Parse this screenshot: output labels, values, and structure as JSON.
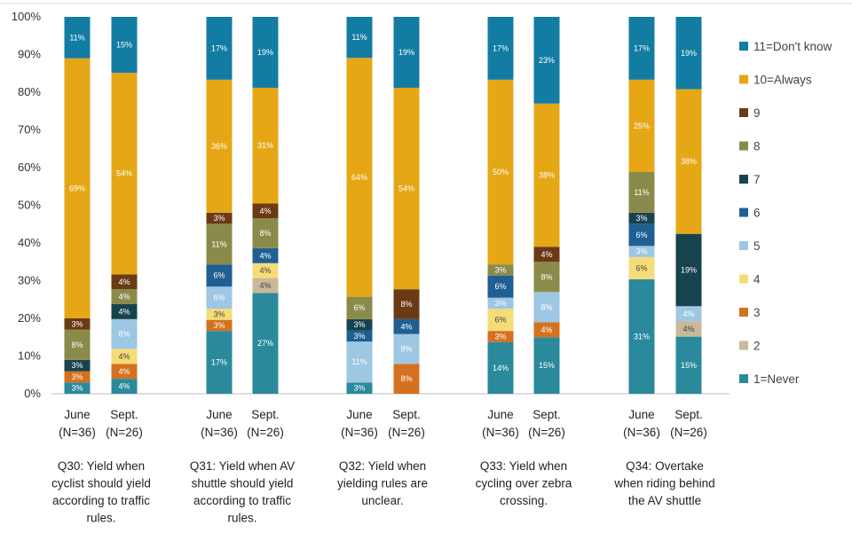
{
  "chart_data": {
    "type": "bar",
    "stacked": true,
    "percent_stacked": true,
    "y_ticks": [
      "0%",
      "10%",
      "20%",
      "30%",
      "40%",
      "50%",
      "60%",
      "70%",
      "80%",
      "90%",
      "100%"
    ],
    "ylim": [
      0,
      100
    ],
    "legend_position": "right",
    "groups": [
      {
        "label": [
          "Q30: Yield when",
          "cyclist should yield",
          "according to traffic",
          "rules."
        ]
      },
      {
        "label": [
          "Q31: Yield when AV",
          "shuttle should yield",
          "according to traffic",
          "rules."
        ]
      },
      {
        "label": [
          "Q32: Yield when",
          "yielding rules are",
          "unclear."
        ]
      },
      {
        "label": [
          "Q33: Yield when",
          "cycling over zebra",
          "crossing."
        ]
      },
      {
        "label": [
          "Q34: Overtake",
          "when riding behind",
          "the AV shuttle"
        ]
      }
    ],
    "categories": [
      {
        "label": [
          "June",
          "(N=36)"
        ],
        "group": 0
      },
      {
        "label": [
          "Sept.",
          "(N=26)"
        ],
        "group": 0
      },
      {
        "label": [
          "June",
          "(N=36)"
        ],
        "group": 1
      },
      {
        "label": [
          "Sept.",
          "(N=26)"
        ],
        "group": 1
      },
      {
        "label": [
          "June",
          "(N=36)"
        ],
        "group": 2
      },
      {
        "label": [
          "Sept.",
          "(N=26)"
        ],
        "group": 2
      },
      {
        "label": [
          "June",
          "(N=36)"
        ],
        "group": 3
      },
      {
        "label": [
          "Sept.",
          "(N=26)"
        ],
        "group": 3
      },
      {
        "label": [
          "June",
          "(N=36)"
        ],
        "group": 4
      },
      {
        "label": [
          "Sept.",
          "(N=26)"
        ],
        "group": 4
      }
    ],
    "series": [
      {
        "name": "1=Never",
        "color": "#2a8a9b",
        "values": [
          3,
          4,
          17,
          27,
          3,
          0,
          14,
          15,
          31,
          15
        ]
      },
      {
        "name": "2",
        "color": "#c9b99a",
        "values": [
          0,
          0,
          0,
          4,
          0,
          0,
          0,
          0,
          0,
          4
        ]
      },
      {
        "name": "3",
        "color": "#d4711f",
        "values": [
          3,
          4,
          3,
          0,
          0,
          8,
          3,
          4,
          0,
          0
        ]
      },
      {
        "name": "4",
        "color": "#f6dc78",
        "values": [
          0,
          4,
          3,
          4,
          0,
          0,
          6,
          0,
          6,
          0
        ]
      },
      {
        "name": "5",
        "color": "#9dc7e3",
        "values": [
          0,
          8,
          6,
          0,
          11,
          8,
          3,
          8,
          3,
          4
        ]
      },
      {
        "name": "6",
        "color": "#1f5f93",
        "values": [
          0,
          0,
          6,
          4,
          3,
          4,
          6,
          0,
          6,
          0
        ]
      },
      {
        "name": "7",
        "color": "#17434e",
        "values": [
          3,
          4,
          0,
          0,
          3,
          0,
          0,
          0,
          3,
          19
        ]
      },
      {
        "name": "8",
        "color": "#8a8b4a",
        "values": [
          8,
          4,
          11,
          8,
          6,
          0,
          3,
          8,
          11,
          0
        ]
      },
      {
        "name": "9",
        "color": "#6b3a14",
        "values": [
          3,
          4,
          3,
          4,
          0,
          8,
          0,
          4,
          0,
          0
        ]
      },
      {
        "name": "10=Always",
        "color": "#e6a717",
        "values": [
          69,
          54,
          36,
          31,
          64,
          54,
          50,
          38,
          25,
          38
        ]
      },
      {
        "name": "11=Don't know",
        "color": "#137ca3",
        "values": [
          11,
          15,
          17,
          19,
          11,
          19,
          17,
          23,
          17,
          19
        ]
      }
    ],
    "data_labels": [
      [
        "3%",
        "4%",
        "17%",
        "27%",
        "3%",
        "",
        "14%",
        "15%",
        "31%",
        "15%"
      ],
      [
        "",
        "",
        "",
        "4%",
        "",
        "",
        "",
        "",
        "",
        "4%"
      ],
      [
        "3%",
        "4%",
        "3%",
        "",
        "",
        "8%",
        "3%",
        "4%",
        "",
        ""
      ],
      [
        "",
        "4%",
        "3%",
        "4%",
        "",
        "",
        "6%",
        "",
        "6%",
        ""
      ],
      [
        "",
        "8%",
        "6%",
        "",
        "11%",
        "8%",
        "3%",
        "8%",
        "3%",
        "4%"
      ],
      [
        "",
        "",
        "6%",
        "4%",
        "3%",
        "4%",
        "6%",
        "",
        "6%",
        ""
      ],
      [
        "3%",
        "4%",
        "",
        "",
        "3%",
        "",
        "",
        "",
        "3%",
        "19%"
      ],
      [
        "8%",
        "4%",
        "11%",
        "8%",
        "6%",
        "",
        "3%",
        "8%",
        "11%",
        ""
      ],
      [
        "3%",
        "4%",
        "3%",
        "4%",
        "",
        "8%",
        "",
        "4%",
        "",
        ""
      ],
      [
        "69%",
        "54%",
        "36%",
        "31%",
        "64%",
        "54%",
        "50%",
        "38%",
        "25%",
        "38%"
      ],
      [
        "11%",
        "15%",
        "17%",
        "19%",
        "11%",
        "19%",
        "17%",
        "23%",
        "17%",
        "19%"
      ]
    ],
    "legend_order": [
      "11=Don't know",
      "10=Always",
      "9",
      "8",
      "7",
      "6",
      "5",
      "4",
      "3",
      "2",
      "1=Never"
    ]
  }
}
